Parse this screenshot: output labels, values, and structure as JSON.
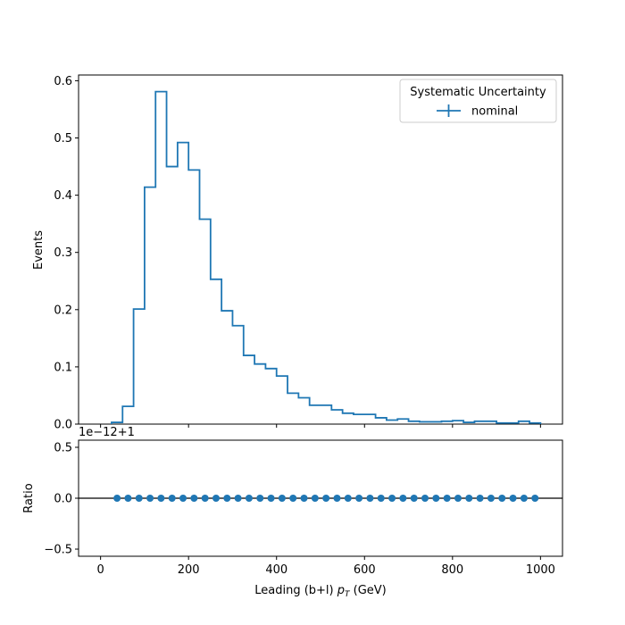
{
  "chart_data": {
    "type": "histogram-with-ratio",
    "series_color": "#1f77b4",
    "top_panel": {
      "ylabel": "Events",
      "ylim": [
        0,
        0.61
      ],
      "yticks": [
        0.0,
        0.1,
        0.2,
        0.3,
        0.4,
        0.5,
        0.6
      ],
      "ytick_labels": [
        "0.0",
        "0.1",
        "0.2",
        "0.3",
        "0.4",
        "0.5",
        "0.6"
      ],
      "legend_title": "Systematic Uncertainty",
      "legend_placement": "top-right",
      "series": [
        {
          "name": "nominal",
          "bin_edges": [
            25,
            50,
            75,
            100,
            125,
            150,
            175,
            200,
            225,
            250,
            275,
            300,
            325,
            350,
            375,
            400,
            425,
            450,
            475,
            500,
            525,
            550,
            575,
            600,
            625,
            650,
            675,
            700,
            725,
            750,
            775,
            800,
            825,
            850,
            875,
            900,
            925,
            950,
            975,
            1000
          ],
          "values": [
            0.003,
            0.031,
            0.201,
            0.414,
            0.581,
            0.45,
            0.492,
            0.444,
            0.358,
            0.253,
            0.198,
            0.172,
            0.12,
            0.105,
            0.097,
            0.084,
            0.054,
            0.046,
            0.033,
            0.033,
            0.025,
            0.019,
            0.017,
            0.017,
            0.011,
            0.007,
            0.009,
            0.005,
            0.004,
            0.004,
            0.005,
            0.006,
            0.003,
            0.005,
            0.005,
            0.002,
            0.002,
            0.005,
            0.002
          ]
        }
      ]
    },
    "bottom_panel": {
      "ylabel": "Ratio",
      "offset_text": "1e−12+1",
      "ylim": [
        -0.57,
        0.57
      ],
      "yticks": [
        -0.5,
        0.0,
        0.5
      ],
      "ytick_labels": [
        "−0.5",
        "0.0",
        "0.5"
      ],
      "reference_line": 0.0,
      "points_x": [
        37.5,
        62.5,
        87.5,
        112.5,
        137.5,
        162.5,
        187.5,
        212.5,
        237.5,
        262.5,
        287.5,
        312.5,
        337.5,
        362.5,
        387.5,
        412.5,
        437.5,
        462.5,
        487.5,
        512.5,
        537.5,
        562.5,
        587.5,
        612.5,
        637.5,
        662.5,
        687.5,
        712.5,
        737.5,
        762.5,
        787.5,
        812.5,
        837.5,
        862.5,
        887.5,
        912.5,
        937.5,
        962.5,
        987.5
      ],
      "points_y": 0.0
    },
    "x_axis": {
      "xlabel_prefix": "Leading (b+l) ",
      "xlabel_math": "p",
      "xlabel_sub": "T",
      "xlabel_suffix": " (GeV)",
      "xlim": [
        -50,
        1050
      ],
      "xticks": [
        0,
        200,
        400,
        600,
        800,
        1000
      ],
      "xtick_labels": [
        "0",
        "200",
        "400",
        "600",
        "800",
        "1000"
      ]
    }
  }
}
